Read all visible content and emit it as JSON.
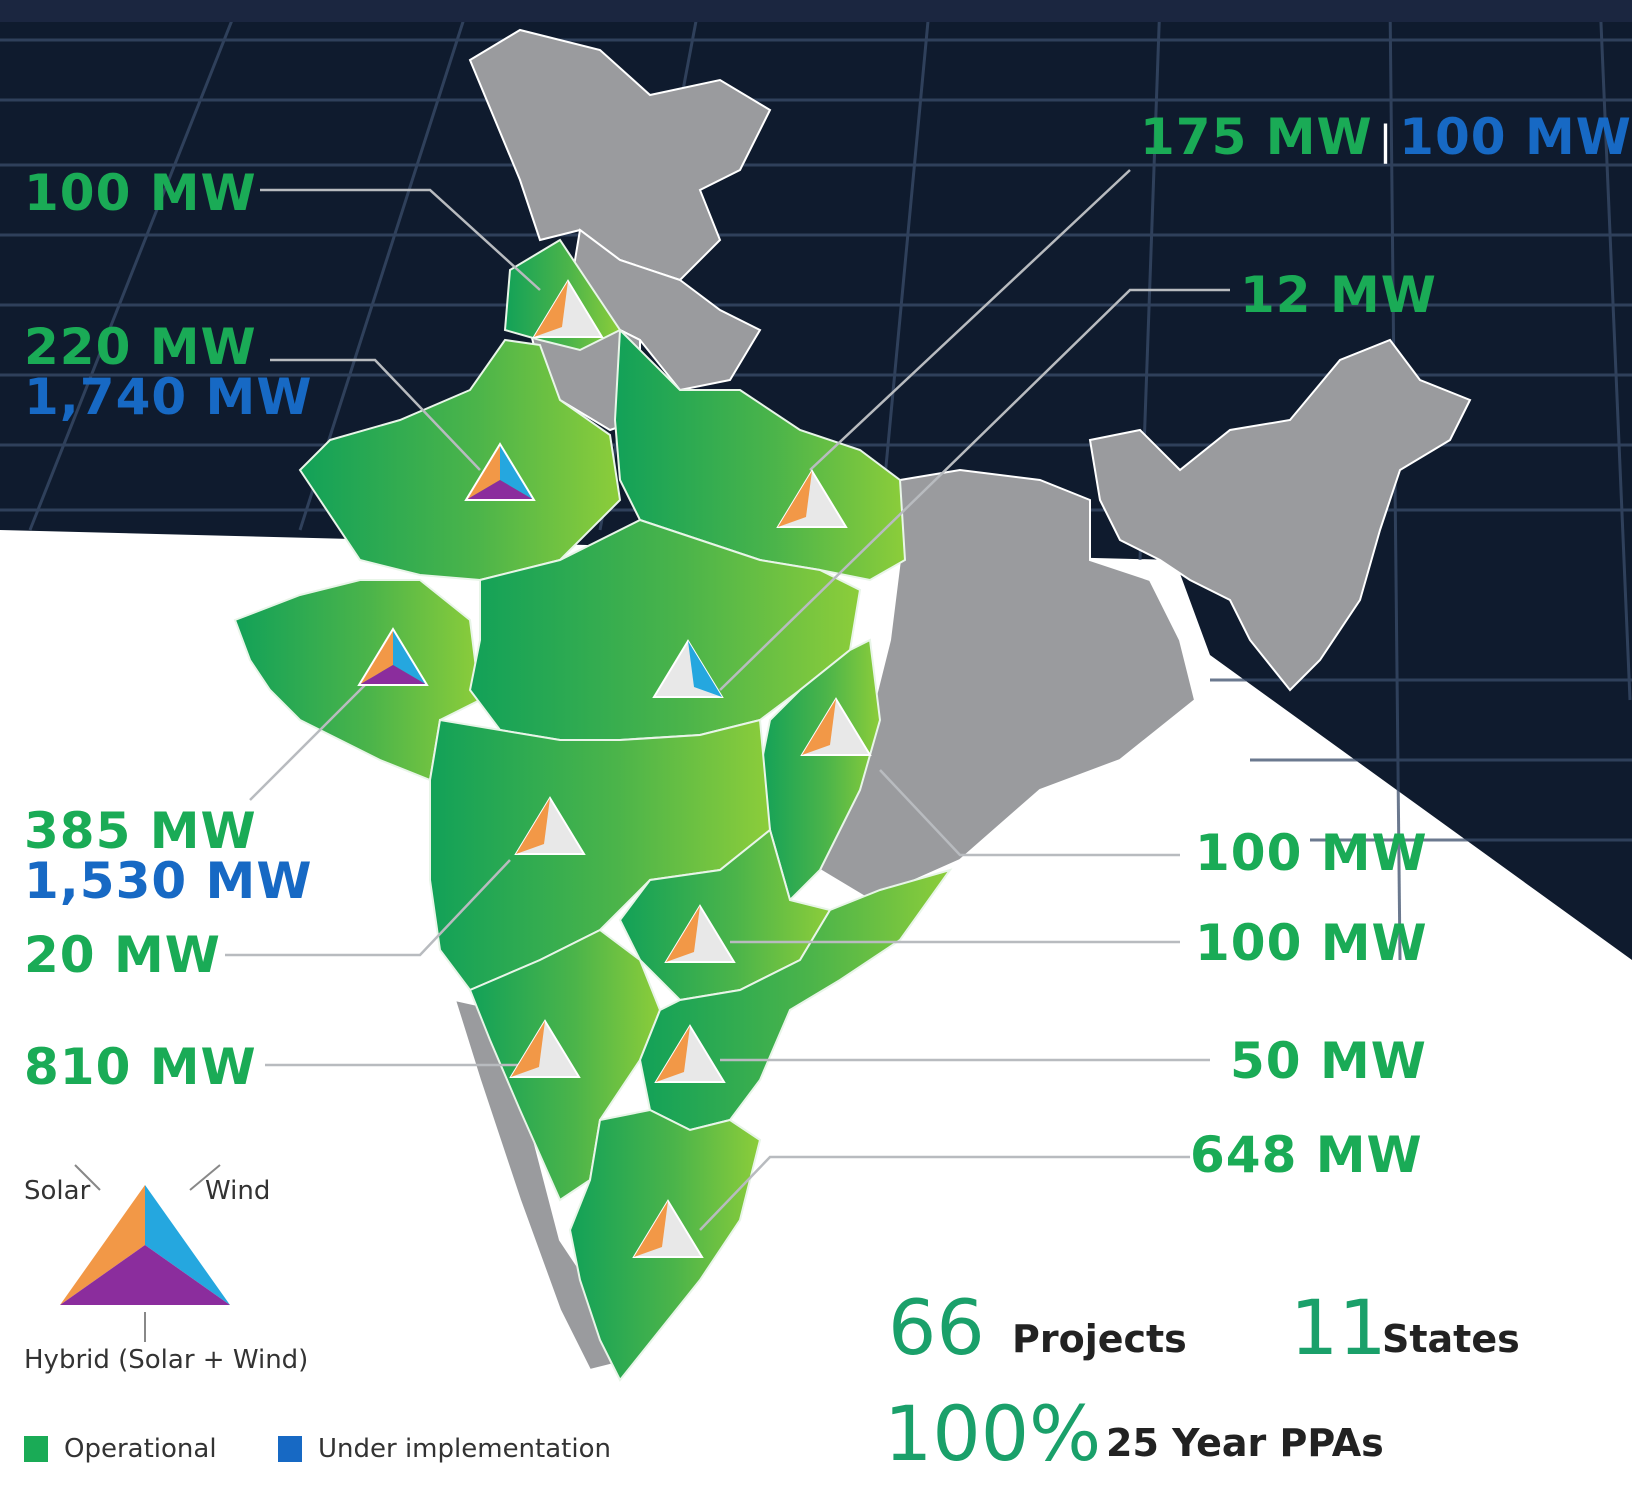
{
  "colors": {
    "operational": "#1aab56",
    "under_implementation": "#1769c4",
    "solar": "#f29847",
    "wind": "#25a7df",
    "hybrid": "#8b2d9d",
    "panel_bg": "#0f1b2e",
    "state_grey": "#9a9b9e"
  },
  "labels": {
    "punjab": "100 MW",
    "up_op": "175 MW",
    "up_ui": "100 MW",
    "rajasthan_op": "220 MW",
    "rajasthan_ui": "1,740 MW",
    "mp": "12 MW",
    "gujarat_op": "385 MW",
    "gujarat_ui": "1,530 MW",
    "maharashtra": "20 MW",
    "chhattisgarh": "100 MW",
    "telangana": "100 MW",
    "karnataka": "810 MW",
    "andhra": "50 MW",
    "tamilnadu": "648 MW"
  },
  "legend": {
    "solar": "Solar",
    "wind": "Wind",
    "hybrid": "Hybrid (Solar + Wind)",
    "operational": "Operational",
    "under_implementation": "Under implementation"
  },
  "stats": {
    "projects_num": "66",
    "projects_label": "Projects",
    "states_num": "11",
    "states_label": "States",
    "ppa_num": "100%",
    "ppa_label": "25 Year PPAs"
  }
}
